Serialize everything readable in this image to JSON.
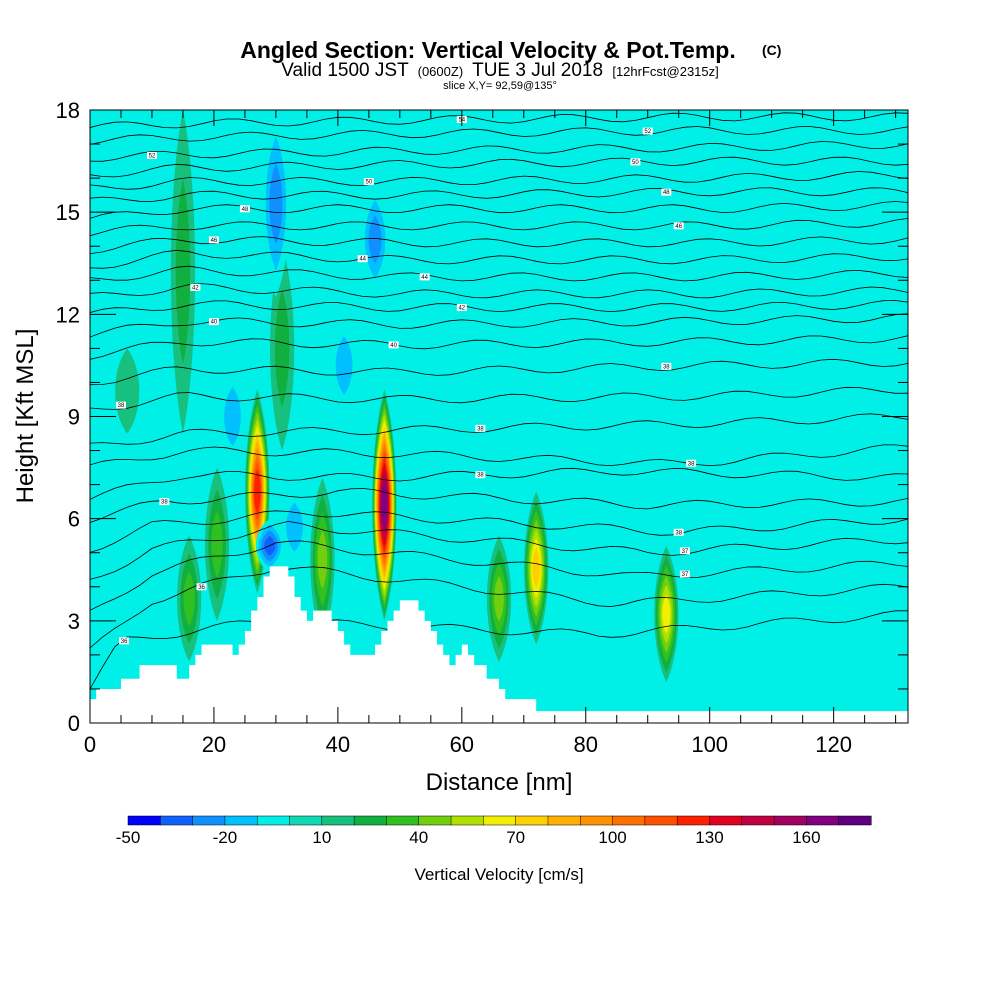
{
  "chart_data": {
    "type": "heatmap",
    "title": "Angled Section: Vertical Velocity & Pot.Temp.",
    "title_tag": "(C)",
    "subtitle": {
      "prefix": "Valid 1500 JST",
      "utc": "(0600Z)",
      "date": "TUE 3 Jul 2018",
      "forecast": "[12hrFcst@2315z]"
    },
    "slice_label": "slice X,Y= 92,59@135°",
    "xlabel": "Distance [nm]",
    "ylabel": "Height [Kft MSL]",
    "xlim": [
      0,
      132
    ],
    "ylim": [
      0,
      18
    ],
    "x_ticks": [
      "0",
      "20",
      "40",
      "60",
      "80",
      "100",
      "120"
    ],
    "y_ticks": [
      "0",
      "3",
      "6",
      "9",
      "12",
      "15",
      "18"
    ],
    "x_tick_values": [
      0,
      20,
      40,
      60,
      80,
      100,
      120
    ],
    "y_tick_values": [
      0,
      3,
      6,
      9,
      12,
      15,
      18
    ],
    "background_value": 0,
    "fill_features": [
      {
        "kind": "updraft",
        "x": 27,
        "y_top": 9.8,
        "y_bottom": 3.8,
        "peak": 125
      },
      {
        "kind": "updraft",
        "x": 47.5,
        "y_top": 9.8,
        "y_bottom": 3.0,
        "peak": 160
      },
      {
        "kind": "updraft",
        "x": 72,
        "y_top": 6.8,
        "y_bottom": 2.3,
        "peak": 70
      },
      {
        "kind": "updraft",
        "x": 93,
        "y_top": 5.2,
        "y_bottom": 1.2,
        "peak": 60
      },
      {
        "kind": "updraft",
        "x": 66,
        "y_top": 5.5,
        "y_bottom": 1.8,
        "peak": 40
      },
      {
        "kind": "updraft",
        "x": 37.5,
        "y_top": 7.2,
        "y_bottom": 2.4,
        "peak": 40
      },
      {
        "kind": "updraft",
        "x": 20.5,
        "y_top": 7.5,
        "y_bottom": 3.0,
        "peak": 30
      },
      {
        "kind": "updraft",
        "x": 16,
        "y_top": 5.5,
        "y_bottom": 1.8,
        "peak": 30
      },
      {
        "kind": "updraft",
        "x": 15,
        "y_top": 18,
        "y_bottom": 8.5,
        "peak": 20
      },
      {
        "kind": "updraft",
        "x": 31,
        "y_top": 14,
        "y_bottom": 8.0,
        "peak": 20
      },
      {
        "kind": "updraft",
        "x": 6,
        "y_top": 11,
        "y_bottom": 8.5,
        "peak": 15
      },
      {
        "kind": "downdraft",
        "x": 29,
        "y_top": 6.0,
        "y_bottom": 4.4,
        "peak": -45
      },
      {
        "kind": "downdraft",
        "x": 46,
        "y_top": 15.8,
        "y_bottom": 12.6,
        "peak": -35
      },
      {
        "kind": "downdraft",
        "x": 30,
        "y_top": 18,
        "y_bottom": 12.5,
        "peak": -30
      },
      {
        "kind": "downdraft",
        "x": 23,
        "y_top": 10.5,
        "y_bottom": 7.5,
        "peak": -25
      },
      {
        "kind": "downdraft",
        "x": 41,
        "y_top": 12.0,
        "y_bottom": 9.0,
        "peak": -20
      },
      {
        "kind": "downdraft",
        "x": 33,
        "y_top": 7.0,
        "y_bottom": 4.5,
        "peak": -20
      },
      {
        "kind": "downdraft",
        "x": 52,
        "y_top": 8.5,
        "y_bottom": 5.5,
        "peak": -15
      },
      {
        "kind": "downdraft",
        "x": 77,
        "y_top": 9.0,
        "y_bottom": 6.0,
        "peak": -15
      },
      {
        "kind": "downdraft",
        "x": 60,
        "y_top": 18,
        "y_bottom": 14,
        "peak": -15
      },
      {
        "kind": "downdraft",
        "x": 10,
        "y_top": 16,
        "y_bottom": 12,
        "peak": -15
      }
    ],
    "terrain": [
      [
        0,
        0.7
      ],
      [
        1,
        1.0
      ],
      [
        5,
        1.3
      ],
      [
        8,
        1.7
      ],
      [
        13,
        1.7
      ],
      [
        14,
        1.3
      ],
      [
        16,
        1.7
      ],
      [
        17,
        2.0
      ],
      [
        18,
        2.3
      ],
      [
        22,
        2.3
      ],
      [
        23,
        2.0
      ],
      [
        24,
        2.3
      ],
      [
        25,
        2.7
      ],
      [
        26,
        3.3
      ],
      [
        27,
        3.7
      ],
      [
        28,
        4.3
      ],
      [
        29,
        4.6
      ],
      [
        32,
        4.6
      ],
      [
        32,
        4.3
      ],
      [
        33,
        3.7
      ],
      [
        34,
        3.3
      ],
      [
        35,
        3.0
      ],
      [
        36,
        3.3
      ],
      [
        38,
        3.3
      ],
      [
        39,
        3.0
      ],
      [
        40,
        2.7
      ],
      [
        41,
        2.3
      ],
      [
        42,
        2.0
      ],
      [
        45,
        2.0
      ],
      [
        46,
        2.3
      ],
      [
        47,
        2.7
      ],
      [
        48,
        3.0
      ],
      [
        49,
        3.3
      ],
      [
        50,
        3.6
      ],
      [
        52,
        3.6
      ],
      [
        53,
        3.3
      ],
      [
        54,
        3.0
      ],
      [
        55,
        2.7
      ],
      [
        56,
        2.3
      ],
      [
        57,
        2.0
      ],
      [
        58,
        1.7
      ],
      [
        59,
        2.0
      ],
      [
        60,
        2.3
      ],
      [
        61,
        2.0
      ],
      [
        62,
        1.7
      ],
      [
        64,
        1.3
      ],
      [
        66,
        1.0
      ],
      [
        67,
        0.7
      ],
      [
        71,
        0.7
      ],
      [
        72,
        0.35
      ],
      [
        132,
        0.35
      ]
    ],
    "theta_contours": [
      {
        "label": "36",
        "at_x": 5.5,
        "left": 1.0,
        "x1": 5,
        "y1": 2.4,
        "x2": 28,
        "y2": 3.0,
        "x3": 82,
        "y3": 2.6,
        "right": 3.2
      },
      {
        "label": "36",
        "at_x": 18,
        "left": 2.1,
        "x1": 10,
        "y1": 3.6,
        "x2": 30,
        "y2": 4.6,
        "x3": 85,
        "y3": 3.5,
        "right": 4.0
      },
      {
        "label": "37",
        "at_x": 96,
        "left": 3.2,
        "x1": 10,
        "y1": 4.4,
        "x2": 30,
        "y2": 5.3,
        "x3": 88,
        "y3": 4.3,
        "right": 4.7
      },
      {
        "label": "37",
        "at_x": 96,
        "left": 4.2,
        "x1": 10,
        "y1": 5.1,
        "x2": 32,
        "y2": 5.8,
        "x3": 90,
        "y3": 5.0,
        "right": 5.4
      },
      {
        "label": "38",
        "at_x": 95,
        "left": 5.1,
        "x1": 10,
        "y1": 5.8,
        "x2": 35,
        "y2": 6.2,
        "x3": 95,
        "y3": 5.6,
        "right": 6.0
      },
      {
        "label": "38",
        "at_x": 12,
        "left": 6.0,
        "x1": 12,
        "y1": 6.5,
        "x2": 40,
        "y2": 6.8,
        "x3": 90,
        "y3": 6.4,
        "right": 6.5
      },
      {
        "label": "38",
        "at_x": 63,
        "left": 6.6,
        "x1": 15,
        "y1": 7.3,
        "x2": 45,
        "y2": 7.2,
        "x3": 85,
        "y3": 7.4,
        "right": 7.2
      },
      {
        "label": "38",
        "at_x": 97,
        "left": 7.5,
        "x1": 15,
        "y1": 8.0,
        "x2": 50,
        "y2": 7.9,
        "x3": 95,
        "y3": 7.6,
        "right": 8.1
      },
      {
        "label": "38",
        "at_x": 63,
        "left": 8.1,
        "x1": 15,
        "y1": 8.5,
        "x2": 50,
        "y2": 8.6,
        "x3": 100,
        "y3": 8.8,
        "right": 9.0
      },
      {
        "label": "38",
        "at_x": 5,
        "left": 9.2,
        "x1": 15,
        "y1": 9.6,
        "x2": 50,
        "y2": 9.5,
        "x3": 100,
        "y3": 9.6,
        "right": 9.8
      },
      {
        "label": "38",
        "at_x": 93,
        "left": 10.0,
        "x1": 15,
        "y1": 10.4,
        "x2": 50,
        "y2": 10.3,
        "x3": 100,
        "y3": 10.5,
        "right": 10.6
      },
      {
        "label": "40",
        "at_x": 49,
        "left": 10.8,
        "x1": 15,
        "y1": 11.2,
        "x2": 50,
        "y2": 11.1,
        "x3": 100,
        "y3": 11.2,
        "right": 11.3
      },
      {
        "label": "40",
        "at_x": 20,
        "left": 11.4,
        "x1": 15,
        "y1": 11.8,
        "x2": 50,
        "y2": 11.7,
        "x3": 100,
        "y3": 11.8,
        "right": 11.9
      },
      {
        "label": "42",
        "at_x": 60,
        "left": 12.0,
        "x1": 15,
        "y1": 12.3,
        "x2": 50,
        "y2": 12.2,
        "x3": 100,
        "y3": 12.2,
        "right": 12.3
      },
      {
        "label": "42",
        "at_x": 17,
        "left": 12.5,
        "x1": 15,
        "y1": 12.8,
        "x2": 50,
        "y2": 12.6,
        "x3": 100,
        "y3": 12.6,
        "right": 12.7
      },
      {
        "label": "44",
        "at_x": 54,
        "left": 13.0,
        "x1": 15,
        "y1": 13.3,
        "x2": 50,
        "y2": 13.1,
        "x3": 100,
        "y3": 13.1,
        "right": 13.2
      },
      {
        "label": "44",
        "at_x": 44,
        "left": 13.4,
        "x1": 15,
        "y1": 13.8,
        "x2": 50,
        "y2": 13.6,
        "x3": 100,
        "y3": 13.6,
        "right": 13.7
      },
      {
        "label": "46",
        "at_x": 20,
        "left": 13.9,
        "x1": 15,
        "y1": 14.2,
        "x2": 50,
        "y2": 14.1,
        "x3": 100,
        "y3": 14.1,
        "right": 14.2
      },
      {
        "label": "46",
        "at_x": 95,
        "left": 14.4,
        "x1": 15,
        "y1": 14.6,
        "x2": 50,
        "y2": 14.6,
        "x3": 100,
        "y3": 14.6,
        "right": 14.7
      },
      {
        "label": "48",
        "at_x": 25,
        "left": 14.8,
        "x1": 15,
        "y1": 15.1,
        "x2": 50,
        "y2": 15.1,
        "x3": 100,
        "y3": 15.1,
        "right": 15.2
      },
      {
        "label": "48",
        "at_x": 93,
        "left": 15.3,
        "x1": 15,
        "y1": 15.5,
        "x2": 50,
        "y2": 15.5,
        "x3": 100,
        "y3": 15.6,
        "right": 15.6
      },
      {
        "label": "50",
        "at_x": 45,
        "left": 15.7,
        "x1": 15,
        "y1": 15.9,
        "x2": 50,
        "y2": 15.9,
        "x3": 100,
        "y3": 16.0,
        "right": 16.1
      },
      {
        "label": "50",
        "at_x": 88,
        "left": 16.1,
        "x1": 15,
        "y1": 16.3,
        "x2": 50,
        "y2": 16.4,
        "x3": 100,
        "y3": 16.5,
        "right": 16.5
      },
      {
        "label": "52",
        "at_x": 10,
        "left": 16.6,
        "x1": 15,
        "y1": 16.7,
        "x2": 50,
        "y2": 16.8,
        "x3": 100,
        "y3": 16.9,
        "right": 17.0
      },
      {
        "label": "52",
        "at_x": 90,
        "left": 17.1,
        "x1": 15,
        "y1": 17.2,
        "x2": 50,
        "y2": 17.3,
        "x3": 100,
        "y3": 17.4,
        "right": 17.4
      },
      {
        "label": "54",
        "at_x": 60,
        "left": 17.5,
        "x1": 15,
        "y1": 17.6,
        "x2": 50,
        "y2": 17.7,
        "x3": 100,
        "y3": 17.8,
        "right": 17.8
      }
    ],
    "colorbar": {
      "label": "Vertical Velocity [cm/s]",
      "tick_labels": [
        "-50",
        "-20",
        "10",
        "40",
        "70",
        "100",
        "130",
        "160"
      ],
      "tick_values": [
        -50,
        -20,
        10,
        40,
        70,
        100,
        130,
        160
      ],
      "bins": [
        -50,
        -40,
        -30,
        -20,
        -10,
        0,
        10,
        20,
        30,
        40,
        50,
        60,
        70,
        80,
        90,
        100,
        110,
        120,
        130,
        140,
        150,
        160,
        170,
        180
      ],
      "colors": [
        "#0000ff",
        "#1060ff",
        "#1090ff",
        "#00c0ff",
        "#00f0e8",
        "#10d8b0",
        "#18c080",
        "#10b040",
        "#30c020",
        "#70d010",
        "#b0e000",
        "#f0f000",
        "#ffd000",
        "#ffb000",
        "#ff9000",
        "#ff7000",
        "#ff5000",
        "#ff2000",
        "#e00020",
        "#c00040",
        "#a00060",
        "#800080",
        "#600080"
      ]
    }
  }
}
